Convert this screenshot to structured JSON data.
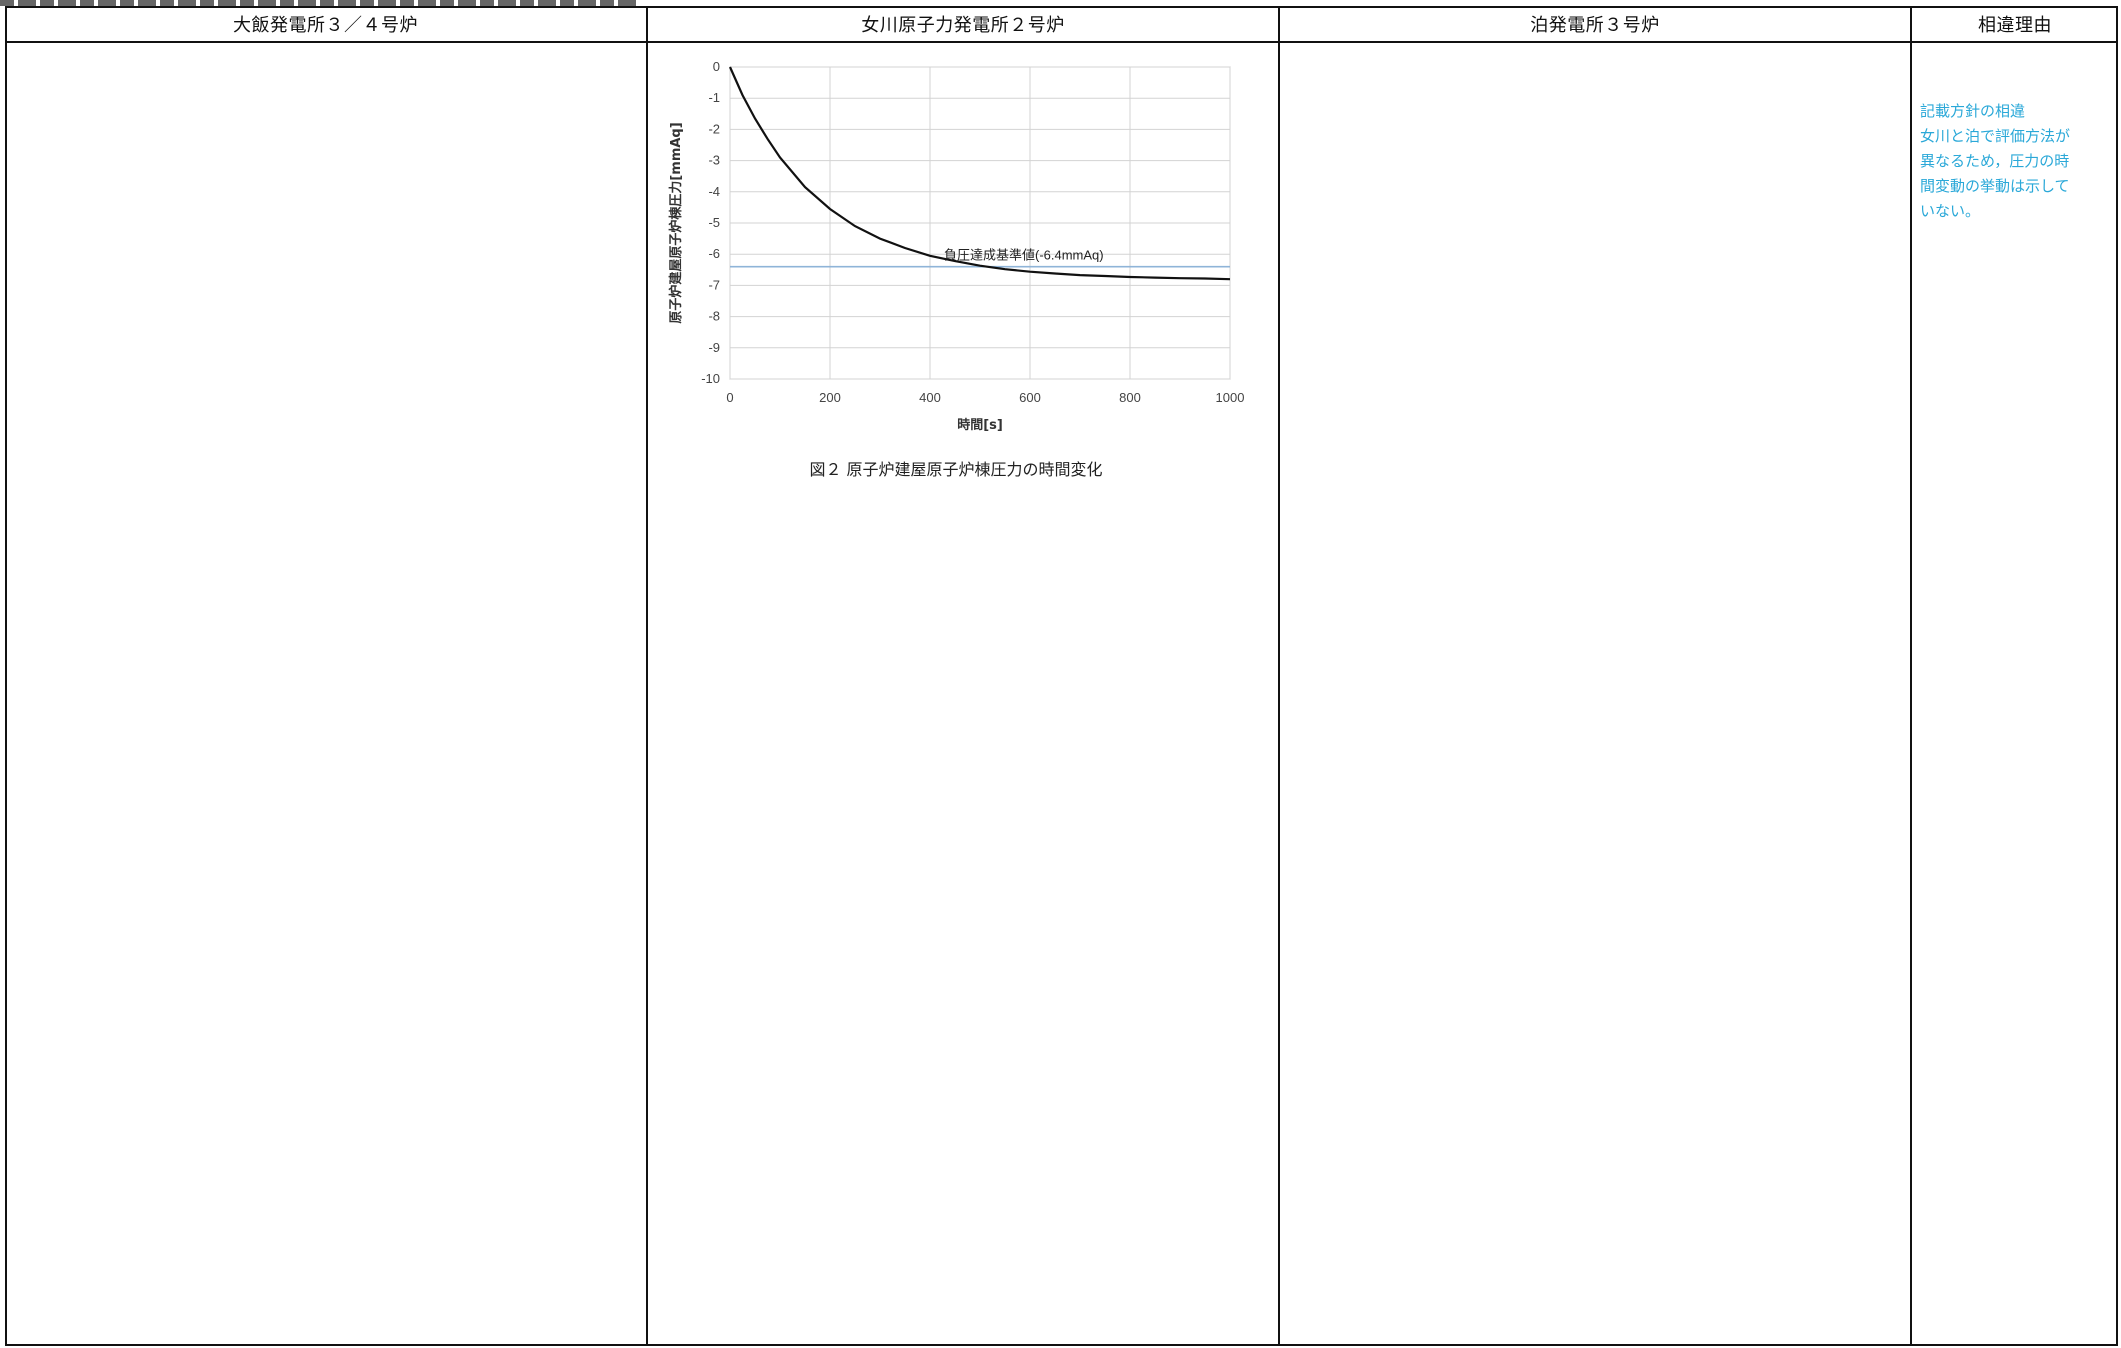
{
  "headers": {
    "col1": "大飯発電所３／４号炉",
    "col2": "女川原子力発電所２号炉",
    "col3": "泊発電所３号炉",
    "col4": "相違理由"
  },
  "reason_note": "記載方針の相違\n女川と泊で評価方法が\n異なるため，圧力の時\n間変動の挙動は示して\nいない。",
  "figure_caption": "図２ 原子炉建屋原子炉棟圧力の時間変化",
  "chart_data": {
    "type": "line",
    "title": "",
    "xlabel": "時間[s]",
    "ylabel": "原子炉建屋原子炉棟圧力[mmAq]",
    "xlim": [
      0,
      1000
    ],
    "ylim": [
      -10,
      0
    ],
    "x_ticks": [
      "0",
      "200",
      "400",
      "600",
      "800",
      "1000"
    ],
    "y_ticks": [
      "0",
      "-1",
      "-2",
      "-3",
      "-4",
      "-5",
      "-6",
      "-7",
      "-8",
      "-9",
      "-10"
    ],
    "grid": true,
    "series": [
      {
        "name": "",
        "x": [
          0,
          25,
          50,
          75,
          100,
          150,
          200,
          250,
          300,
          350,
          400,
          450,
          500,
          550,
          600,
          650,
          700,
          750,
          800,
          850,
          900,
          950,
          1000
        ],
        "y": [
          0,
          -0.9,
          -1.65,
          -2.3,
          -2.9,
          -3.85,
          -4.55,
          -5.1,
          -5.5,
          -5.8,
          -6.05,
          -6.22,
          -6.37,
          -6.48,
          -6.56,
          -6.62,
          -6.67,
          -6.7,
          -6.73,
          -6.75,
          -6.77,
          -6.78,
          -6.8
        ],
        "color": "#111111"
      }
    ],
    "reference_line": {
      "y": -6.4,
      "label": "負圧達成基準値(-6.4mmAq)",
      "color": "#8fb4d8"
    }
  }
}
